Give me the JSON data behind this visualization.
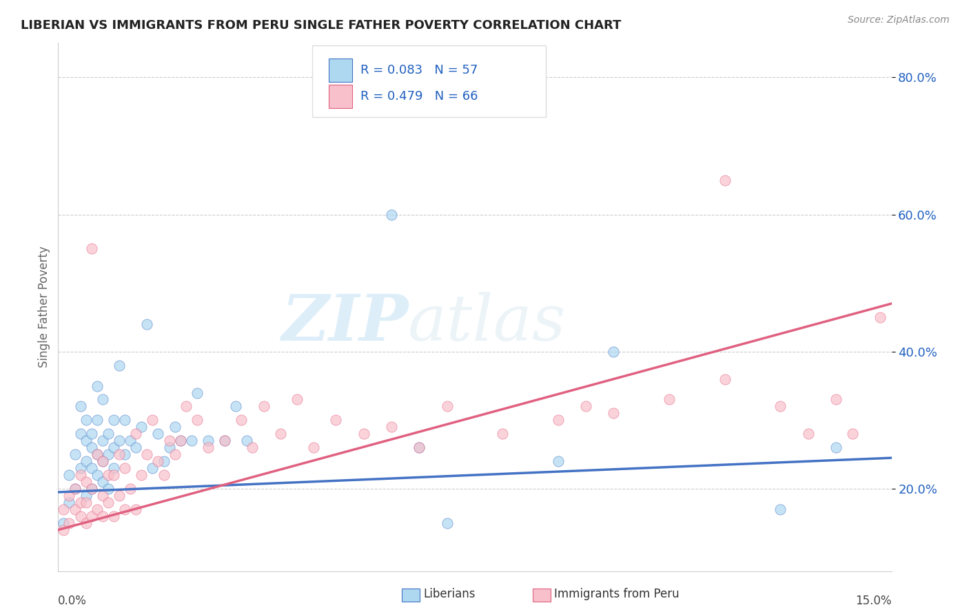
{
  "title": "LIBERIAN VS IMMIGRANTS FROM PERU SINGLE FATHER POVERTY CORRELATION CHART",
  "source": "Source: ZipAtlas.com",
  "ylabel": "Single Father Poverty",
  "xlim": [
    0.0,
    0.15
  ],
  "ylim": [
    0.08,
    0.85
  ],
  "yticks": [
    0.2,
    0.4,
    0.6,
    0.8
  ],
  "ytick_labels": [
    "20.0%",
    "40.0%",
    "60.0%",
    "80.0%"
  ],
  "legend_r1": "R = 0.083",
  "legend_n1": "N = 57",
  "legend_r2": "R = 0.479",
  "legend_n2": "N = 66",
  "color_blue": "#ADD8F0",
  "color_pink": "#F8C0CB",
  "color_blue_line": "#4472C4",
  "color_pink_line": "#E06080",
  "color_legend_text": "#2060C0",
  "watermark_zip": "ZIP",
  "watermark_atlas": "atlas",
  "background_color": "#FFFFFF",
  "blue_trend": [
    0.195,
    0.245
  ],
  "pink_trend": [
    0.14,
    0.47
  ],
  "blue_x": [
    0.001,
    0.002,
    0.002,
    0.003,
    0.003,
    0.004,
    0.004,
    0.004,
    0.005,
    0.005,
    0.005,
    0.005,
    0.006,
    0.006,
    0.006,
    0.006,
    0.007,
    0.007,
    0.007,
    0.007,
    0.008,
    0.008,
    0.008,
    0.008,
    0.009,
    0.009,
    0.009,
    0.01,
    0.01,
    0.01,
    0.011,
    0.011,
    0.012,
    0.012,
    0.013,
    0.014,
    0.015,
    0.016,
    0.017,
    0.018,
    0.019,
    0.02,
    0.021,
    0.022,
    0.024,
    0.025,
    0.027,
    0.03,
    0.032,
    0.034,
    0.06,
    0.065,
    0.07,
    0.09,
    0.1,
    0.13,
    0.14
  ],
  "blue_y": [
    0.15,
    0.18,
    0.22,
    0.2,
    0.25,
    0.23,
    0.28,
    0.32,
    0.19,
    0.24,
    0.27,
    0.3,
    0.2,
    0.23,
    0.26,
    0.28,
    0.22,
    0.25,
    0.3,
    0.35,
    0.21,
    0.24,
    0.27,
    0.33,
    0.2,
    0.25,
    0.28,
    0.23,
    0.26,
    0.3,
    0.27,
    0.38,
    0.25,
    0.3,
    0.27,
    0.26,
    0.29,
    0.44,
    0.23,
    0.28,
    0.24,
    0.26,
    0.29,
    0.27,
    0.27,
    0.34,
    0.27,
    0.27,
    0.32,
    0.27,
    0.6,
    0.26,
    0.15,
    0.24,
    0.4,
    0.17,
    0.26
  ],
  "pink_x": [
    0.001,
    0.001,
    0.002,
    0.002,
    0.003,
    0.003,
    0.004,
    0.004,
    0.004,
    0.005,
    0.005,
    0.005,
    0.006,
    0.006,
    0.006,
    0.007,
    0.007,
    0.008,
    0.008,
    0.008,
    0.009,
    0.009,
    0.01,
    0.01,
    0.011,
    0.011,
    0.012,
    0.012,
    0.013,
    0.014,
    0.014,
    0.015,
    0.016,
    0.017,
    0.018,
    0.019,
    0.02,
    0.021,
    0.022,
    0.023,
    0.025,
    0.027,
    0.03,
    0.033,
    0.035,
    0.037,
    0.04,
    0.043,
    0.046,
    0.05,
    0.055,
    0.06,
    0.065,
    0.07,
    0.08,
    0.09,
    0.095,
    0.1,
    0.11,
    0.12,
    0.12,
    0.13,
    0.135,
    0.14,
    0.143,
    0.148
  ],
  "pink_y": [
    0.14,
    0.17,
    0.15,
    0.19,
    0.17,
    0.2,
    0.16,
    0.18,
    0.22,
    0.15,
    0.18,
    0.21,
    0.16,
    0.2,
    0.55,
    0.17,
    0.25,
    0.16,
    0.19,
    0.24,
    0.18,
    0.22,
    0.16,
    0.22,
    0.19,
    0.25,
    0.17,
    0.23,
    0.2,
    0.17,
    0.28,
    0.22,
    0.25,
    0.3,
    0.24,
    0.22,
    0.27,
    0.25,
    0.27,
    0.32,
    0.3,
    0.26,
    0.27,
    0.3,
    0.26,
    0.32,
    0.28,
    0.33,
    0.26,
    0.3,
    0.28,
    0.29,
    0.26,
    0.32,
    0.28,
    0.3,
    0.32,
    0.31,
    0.33,
    0.36,
    0.65,
    0.32,
    0.28,
    0.33,
    0.28,
    0.45
  ]
}
